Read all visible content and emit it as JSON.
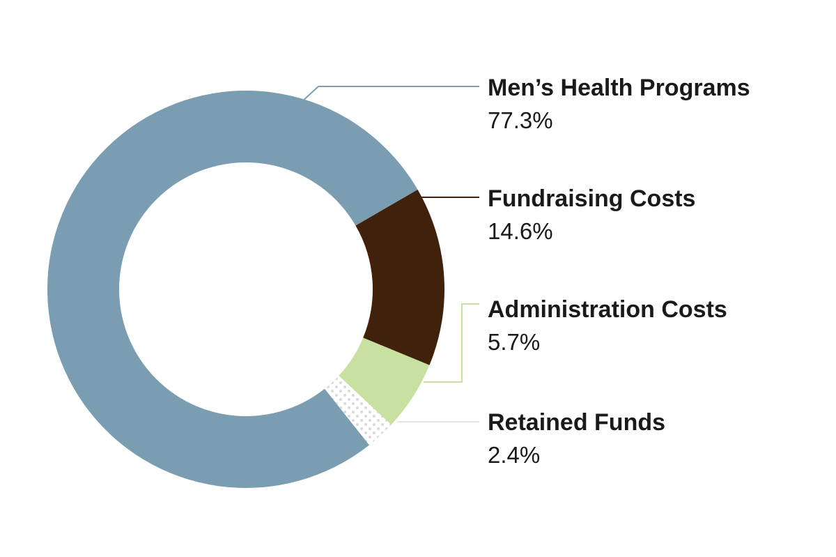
{
  "chart_data": {
    "type": "pie",
    "variant": "donut",
    "title": "",
    "legend_placement": "right",
    "slices": [
      {
        "label": "Men’s Health Programs",
        "value": 77.3,
        "display": "77.3%",
        "color": "#7a9db1",
        "pattern": "solid"
      },
      {
        "label": "Fundraising Costs",
        "value": 14.6,
        "display": "14.6%",
        "color": "#40210b",
        "pattern": "solid"
      },
      {
        "label": "Administration Costs",
        "value": 5.7,
        "display": "5.7%",
        "color": "#c8e0a0",
        "pattern": "solid"
      },
      {
        "label": "Retained Funds",
        "value": 2.4,
        "display": "2.4%",
        "color": "#e6e6e6",
        "pattern": "dotted"
      }
    ]
  }
}
